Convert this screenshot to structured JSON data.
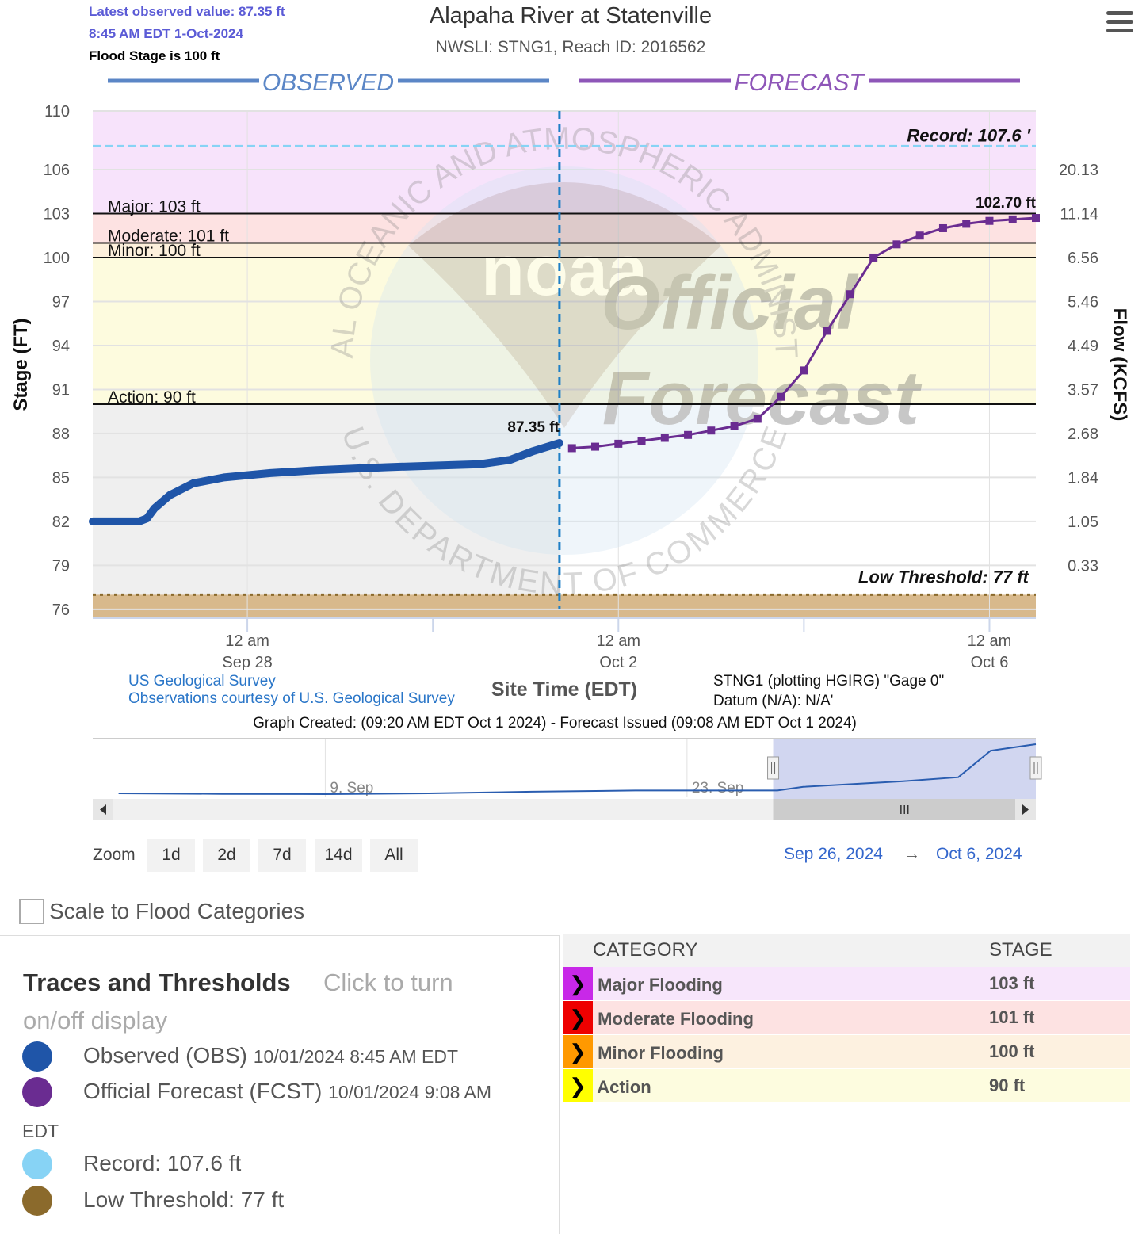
{
  "header": {
    "latest_value": "Latest observed value: 87.35 ft",
    "latest_time": "8:45 AM EDT 1-Oct-2024",
    "flood_stage": "Flood Stage is 100 ft",
    "title": "Alapaha River at Statenville",
    "subtitle": "NWSLI: STNG1, Reach ID: 2016562",
    "menu_icon": "hamburger-menu-icon"
  },
  "chart_data": {
    "type": "line",
    "title": "Alapaha River at Statenville",
    "subtitle": "NWSLI: STNG1, Reach ID: 2016562",
    "section_labels": {
      "observed": "OBSERVED",
      "forecast": "FORECAST"
    },
    "ylabel": "Stage (FT)",
    "ylabel_right": "Flow (KCFS)",
    "xlabel": "Site Time (EDT)",
    "ylim": [
      75.4,
      110
    ],
    "xlim": [
      "2024-09-26T08:00",
      "2024-10-06T12:00"
    ],
    "y_ticks": [
      76,
      79,
      82,
      85,
      88,
      91,
      94,
      97,
      100,
      103,
      106,
      110
    ],
    "y_right_ticks": [
      {
        "stage": 79,
        "label": "0.33"
      },
      {
        "stage": 82,
        "label": "1.05"
      },
      {
        "stage": 85,
        "label": "1.84"
      },
      {
        "stage": 88,
        "label": "2.68"
      },
      {
        "stage": 91,
        "label": "3.57"
      },
      {
        "stage": 94,
        "label": "4.49"
      },
      {
        "stage": 97,
        "label": "5.46"
      },
      {
        "stage": 100,
        "label": "6.56"
      },
      {
        "stage": 103,
        "label": "11.14"
      },
      {
        "stage": 106,
        "label": "20.13"
      }
    ],
    "x_ticks": [
      {
        "t": "2024-09-28T00:00",
        "line1": "12 am",
        "line2": "Sep 28"
      },
      {
        "t": "2024-10-02T00:00",
        "line1": "12 am",
        "line2": "Oct 2"
      },
      {
        "t": "2024-10-06T00:00",
        "line1": "12 am",
        "line2": "Oct 6"
      }
    ],
    "x_minor_ticks": [
      "2024-09-30T00:00",
      "2024-10-04T00:00"
    ],
    "now": "2024-10-01T08:45",
    "bands": [
      {
        "name": "Major",
        "from": 103,
        "to": 110,
        "color": "#f7e3fb"
      },
      {
        "name": "Moderate",
        "from": 101,
        "to": 103,
        "color": "#fde2e2"
      },
      {
        "name": "Minor",
        "from": 100,
        "to": 101,
        "color": "#fdf0dc"
      },
      {
        "name": "Action",
        "from": 90,
        "to": 100,
        "color": "#fdfbde"
      }
    ],
    "thresholds": [
      {
        "label": "Major: 103 ft",
        "value": 103
      },
      {
        "label": "Moderate: 101 ft",
        "value": 101
      },
      {
        "label": "Minor: 100 ft",
        "value": 100
      },
      {
        "label": "Action: 90 ft",
        "value": 90
      }
    ],
    "record": {
      "label": "Record: 107.6 '",
      "value": 107.6,
      "color": "#87d3f5"
    },
    "low_threshold": {
      "label": "Low Threshold: 77 ft",
      "value": 77,
      "color": "#8b6a2c"
    },
    "watermark": {
      "top_text": "NATIONAL OCEANIC AND ATMOSPHERIC ADMINISTRATION",
      "bottom_text": "U.S. DEPARTMENT OF COMMERCE",
      "logo_text": "noaa",
      "line1": "Official",
      "line2": "Forecast"
    },
    "series": [
      {
        "name": "Observed (OBS)",
        "color": "#1f55a8",
        "end_label": "87.35 ft",
        "points": [
          [
            "2024-09-26T08:00",
            82.0
          ],
          [
            "2024-09-26T20:00",
            82.0
          ],
          [
            "2024-09-26T22:00",
            82.2
          ],
          [
            "2024-09-27T00:00",
            82.9
          ],
          [
            "2024-09-27T04:00",
            83.8
          ],
          [
            "2024-09-27T10:00",
            84.6
          ],
          [
            "2024-09-27T18:00",
            85.0
          ],
          [
            "2024-09-28T06:00",
            85.3
          ],
          [
            "2024-09-28T18:00",
            85.5
          ],
          [
            "2024-09-29T12:00",
            85.7
          ],
          [
            "2024-09-30T00:00",
            85.8
          ],
          [
            "2024-09-30T12:00",
            85.9
          ],
          [
            "2024-09-30T20:00",
            86.2
          ],
          [
            "2024-10-01T02:00",
            86.8
          ],
          [
            "2024-10-01T08:45",
            87.35
          ]
        ]
      },
      {
        "name": "Official Forecast (FCST)",
        "color": "#6a2c91",
        "end_label": "102.70 ft",
        "points": [
          [
            "2024-10-01T12:00",
            87.0
          ],
          [
            "2024-10-01T18:00",
            87.1
          ],
          [
            "2024-10-02T00:00",
            87.3
          ],
          [
            "2024-10-02T06:00",
            87.5
          ],
          [
            "2024-10-02T12:00",
            87.7
          ],
          [
            "2024-10-02T18:00",
            87.9
          ],
          [
            "2024-10-03T00:00",
            88.2
          ],
          [
            "2024-10-03T06:00",
            88.5
          ],
          [
            "2024-10-03T12:00",
            89.0
          ],
          [
            "2024-10-03T18:00",
            90.5
          ],
          [
            "2024-10-04T00:00",
            92.3
          ],
          [
            "2024-10-04T06:00",
            95.0
          ],
          [
            "2024-10-04T12:00",
            97.5
          ],
          [
            "2024-10-04T18:00",
            100.0
          ],
          [
            "2024-10-05T00:00",
            100.9
          ],
          [
            "2024-10-05T06:00",
            101.5
          ],
          [
            "2024-10-05T12:00",
            102.0
          ],
          [
            "2024-10-05T18:00",
            102.3
          ],
          [
            "2024-10-06T00:00",
            102.5
          ],
          [
            "2024-10-06T06:00",
            102.6
          ],
          [
            "2024-10-06T12:00",
            102.7
          ]
        ]
      }
    ],
    "credits": {
      "usgs_line1": "US Geological Survey",
      "usgs_line2": "Observations courtesy of U.S. Geological Survey",
      "datum_line1": "STNG1 (plotting HGIRG) \"Gage 0\"",
      "datum_line2": "Datum (N/A): N/A'",
      "created": "Graph Created: (09:20 AM EDT Oct 1 2024) - Forecast Issued (09:08 AM EDT Oct 1 2024)"
    },
    "navigator": {
      "labels": [
        {
          "t": "2024-09-09T00:00",
          "text": "9. Sep"
        },
        {
          "t": "2024-09-23T00:00",
          "text": "23. Sep"
        }
      ],
      "xlim": [
        "2024-08-31T00:00",
        "2024-10-06T12:00"
      ],
      "ylim": [
        81,
        104
      ],
      "selected": [
        "2024-09-26T08:00",
        "2024-10-06T12:00"
      ],
      "points": [
        [
          "2024-09-01T00:00",
          82.3
        ],
        [
          "2024-09-05T00:00",
          82.1
        ],
        [
          "2024-09-09T00:00",
          82.0
        ],
        [
          "2024-09-13T00:00",
          82.3
        ],
        [
          "2024-09-17T00:00",
          83.0
        ],
        [
          "2024-09-21T00:00",
          83.5
        ],
        [
          "2024-09-24T00:00",
          83.5
        ],
        [
          "2024-09-26T12:00",
          83.5
        ],
        [
          "2024-09-27T12:00",
          85.0
        ],
        [
          "2024-10-01T08:45",
          87.35
        ],
        [
          "2024-10-03T12:00",
          89.0
        ],
        [
          "2024-10-04T18:00",
          100.0
        ],
        [
          "2024-10-06T12:00",
          102.7
        ]
      ]
    }
  },
  "zoom": {
    "label": "Zoom",
    "buttons": [
      "1d",
      "2d",
      "7d",
      "14d",
      "All"
    ],
    "from": "Sep 26, 2024",
    "arrow": "→",
    "to": "Oct 6, 2024"
  },
  "scale_checkbox": {
    "label": "Scale to Flood Categories",
    "checked": false
  },
  "traces": {
    "title": "Traces and Thresholds",
    "hint_line1": "Click to turn",
    "hint_line2": "on/off display",
    "items": [
      {
        "label": "Observed (OBS)",
        "sub": "10/01/2024 8:45 AM EDT",
        "color": "#1f55a8"
      },
      {
        "label": "Official Forecast (FCST)",
        "sub": "10/01/2024 9:08 AM",
        "color": "#6a2c91"
      },
      {
        "label": "Record: 107.6 ft",
        "sub": "",
        "color": "#87d3f5"
      },
      {
        "label": "Low Threshold: 77 ft",
        "sub": "",
        "color": "#8b6a2c"
      }
    ],
    "edt_wrap": "EDT"
  },
  "categories": {
    "headers": [
      "CATEGORY",
      "STAGE"
    ],
    "rows": [
      {
        "name": "Major Flooding",
        "stage": "103 ft",
        "swatch": "#c828e8",
        "bg": "#f7e6fb"
      },
      {
        "name": "Moderate Flooding",
        "stage": "101 ft",
        "swatch": "#ee0000",
        "bg": "#fde2e2"
      },
      {
        "name": "Minor Flooding",
        "stage": "100 ft",
        "swatch": "#ff9900",
        "bg": "#fdf1e0"
      },
      {
        "name": "Action",
        "stage": "90 ft",
        "swatch": "#ffff00",
        "bg": "#fdfcdf"
      }
    ]
  }
}
